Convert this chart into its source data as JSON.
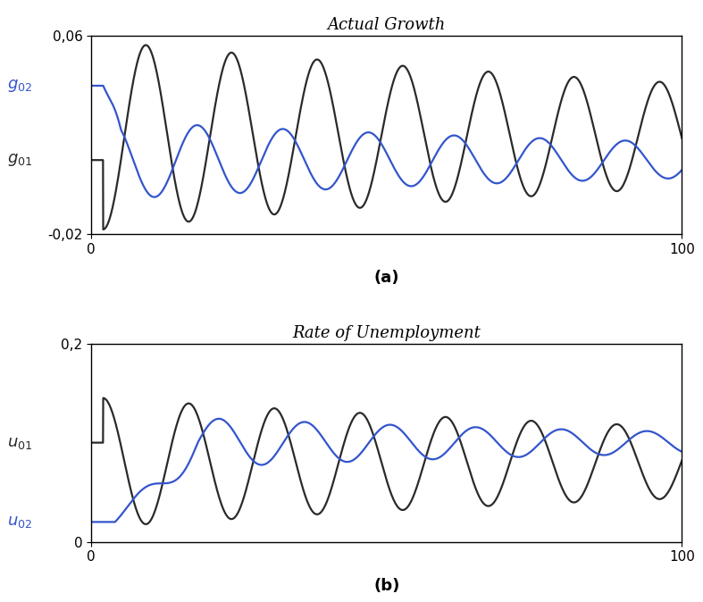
{
  "title_a": "Actual Growth",
  "title_b": "Rate of Unemployment",
  "label_a": "(a)",
  "label_b": "(b)",
  "xlim": [
    0,
    100
  ],
  "ylim_a": [
    -0.02,
    0.06
  ],
  "ylim_b": [
    0.0,
    0.2
  ],
  "yticks_a": [
    -0.02,
    0.06
  ],
  "yticks_b": [
    0.0,
    0.2
  ],
  "xticks": [
    0,
    100
  ],
  "g01_level": 0.01,
  "g02_level": 0.04,
  "u01_level": 0.1,
  "u02_level": 0.02,
  "dark_color": "#2a2a2a",
  "blue_color": "#3355cc",
  "line_width": 1.6,
  "title_fontsize": 13,
  "label_fontsize": 12,
  "tick_fontsize": 11,
  "annotation_fontsize": 13
}
